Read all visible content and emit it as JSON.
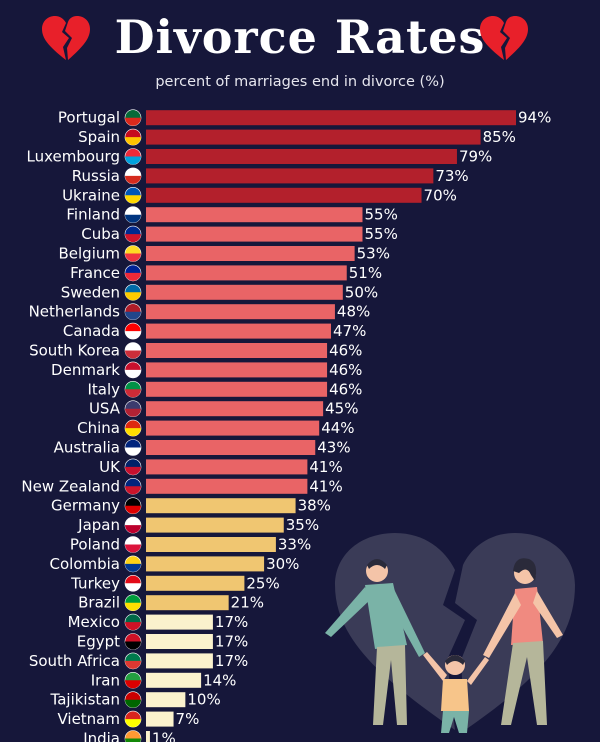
{
  "header": {
    "title": "Divorce Rates",
    "subtitle": "percent of marriages end in divorce (%)",
    "left_icon": "broken-heart-icon",
    "right_icon": "broken-heart-icon"
  },
  "chart_data": {
    "type": "bar",
    "orientation": "horizontal",
    "title": "Divorce Rates",
    "subtitle": "percent of marriages end in divorce (%)",
    "xlim": [
      0,
      100
    ],
    "grid": false,
    "legend": "none",
    "value_suffix": "%",
    "categories": [
      "Portugal",
      "Spain",
      "Luxembourg",
      "Russia",
      "Ukraine",
      "Finland",
      "Cuba",
      "Belgium",
      "France",
      "Sweden",
      "Netherlands",
      "Canada",
      "South Korea",
      "Denmark",
      "Italy",
      "USA",
      "China",
      "Australia",
      "UK",
      "New Zealand",
      "Germany",
      "Japan",
      "Poland",
      "Colombia",
      "Turkey",
      "Brazil",
      "Mexico",
      "Egypt",
      "South Africa",
      "Iran",
      "Tajikistan",
      "Vietnam",
      "India"
    ],
    "values": [
      94,
      85,
      79,
      73,
      70,
      55,
      55,
      53,
      51,
      50,
      48,
      47,
      46,
      46,
      46,
      45,
      44,
      43,
      41,
      41,
      38,
      35,
      33,
      30,
      25,
      21,
      17,
      17,
      17,
      14,
      10,
      7,
      1
    ],
    "value_labels": [
      "94%",
      "85%",
      "79%",
      "73%",
      "70%",
      "55%",
      "55%",
      "53%",
      "51%",
      "50%",
      "48%",
      "47%",
      "46%",
      "46%",
      "46%",
      "45%",
      "44%",
      "43%",
      "41%",
      "41%",
      "38%",
      "35%",
      "33%",
      "30%",
      "25%",
      "21%",
      "17%",
      "17%",
      "17%",
      "14%",
      "10%",
      "7%",
      "1%"
    ],
    "color_bands": [
      {
        "min": 70,
        "color": "#b3202c"
      },
      {
        "min": 40,
        "color": "#e96466"
      },
      {
        "min": 20,
        "color": "#f0c671"
      },
      {
        "min": 0,
        "color": "#fbf2cd"
      }
    ],
    "flags": [
      [
        "#046a38",
        "#da291c"
      ],
      [
        "#c60b1e",
        "#ffc400"
      ],
      [
        "#ed2939",
        "#00a1de"
      ],
      [
        "#ffffff",
        "#d52b1e"
      ],
      [
        "#0057b7",
        "#ffd700"
      ],
      [
        "#ffffff",
        "#003580"
      ],
      [
        "#002a8f",
        "#cf142b"
      ],
      [
        "#fdda24",
        "#ef3340"
      ],
      [
        "#002395",
        "#ed2939"
      ],
      [
        "#006aa7",
        "#fecc00"
      ],
      [
        "#ae1c28",
        "#21468b"
      ],
      [
        "#ff0000",
        "#ffffff"
      ],
      [
        "#ffffff",
        "#cd2e3a"
      ],
      [
        "#c8102e",
        "#ffffff"
      ],
      [
        "#009246",
        "#ce2b37"
      ],
      [
        "#3c3b6e",
        "#b22234"
      ],
      [
        "#de2910",
        "#ffde00"
      ],
      [
        "#00247d",
        "#ffffff"
      ],
      [
        "#012169",
        "#c8102e"
      ],
      [
        "#00247d",
        "#cc142b"
      ],
      [
        "#000000",
        "#dd0000"
      ],
      [
        "#ffffff",
        "#bc002d"
      ],
      [
        "#ffffff",
        "#dc143c"
      ],
      [
        "#fcd116",
        "#003893"
      ],
      [
        "#e30a17",
        "#ffffff"
      ],
      [
        "#009c3b",
        "#ffdf00"
      ],
      [
        "#006847",
        "#ce1126"
      ],
      [
        "#ce1126",
        "#000000"
      ],
      [
        "#007a4d",
        "#de3831"
      ],
      [
        "#239f40",
        "#da0000"
      ],
      [
        "#cc0000",
        "#006600"
      ],
      [
        "#da251d",
        "#ffff00"
      ],
      [
        "#ff9933",
        "#138808"
      ]
    ]
  },
  "illustration": {
    "icon": "broken-heart-family-icon",
    "colors": {
      "heart": "#3a3b57",
      "crack": "#16173a",
      "man_shirt": "#7ab3a7",
      "woman_shirt": "#f08a80",
      "child_shirt": "#f7c58a",
      "pants": "#b5b69a"
    }
  }
}
